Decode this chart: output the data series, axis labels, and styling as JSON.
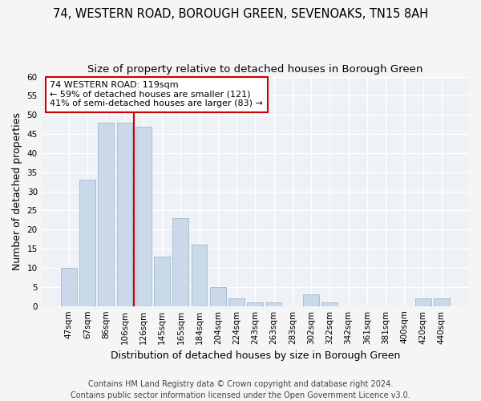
{
  "title": "74, WESTERN ROAD, BOROUGH GREEN, SEVENOAKS, TN15 8AH",
  "subtitle": "Size of property relative to detached houses in Borough Green",
  "xlabel": "Distribution of detached houses by size in Borough Green",
  "ylabel": "Number of detached properties",
  "bar_color": "#c9d9ea",
  "bar_edge_color": "#aabfcf",
  "categories": [
    "47sqm",
    "67sqm",
    "86sqm",
    "106sqm",
    "126sqm",
    "145sqm",
    "165sqm",
    "184sqm",
    "204sqm",
    "224sqm",
    "243sqm",
    "263sqm",
    "283sqm",
    "302sqm",
    "322sqm",
    "342sqm",
    "361sqm",
    "381sqm",
    "400sqm",
    "420sqm",
    "440sqm"
  ],
  "values": [
    10,
    33,
    48,
    48,
    47,
    13,
    23,
    16,
    5,
    2,
    1,
    1,
    0,
    3,
    1,
    0,
    0,
    0,
    0,
    2,
    2
  ],
  "ylim": [
    0,
    60
  ],
  "yticks": [
    0,
    5,
    10,
    15,
    20,
    25,
    30,
    35,
    40,
    45,
    50,
    55,
    60
  ],
  "vline_index": 4,
  "vline_color": "#cc0000",
  "annotation_line1": "74 WESTERN ROAD: 119sqm",
  "annotation_line2": "← 59% of detached houses are smaller (121)",
  "annotation_line3": "41% of semi-detached houses are larger (83) →",
  "annotation_box_color": "#ffffff",
  "annotation_box_edge": "#cc0000",
  "footer1": "Contains HM Land Registry data © Crown copyright and database right 2024.",
  "footer2": "Contains public sector information licensed under the Open Government Licence v3.0.",
  "bg_color": "#eef2f7",
  "grid_color": "#ffffff",
  "title_fontsize": 10.5,
  "subtitle_fontsize": 9.5,
  "axis_label_fontsize": 9,
  "tick_fontsize": 7.5,
  "annotation_fontsize": 8,
  "footer_fontsize": 7
}
